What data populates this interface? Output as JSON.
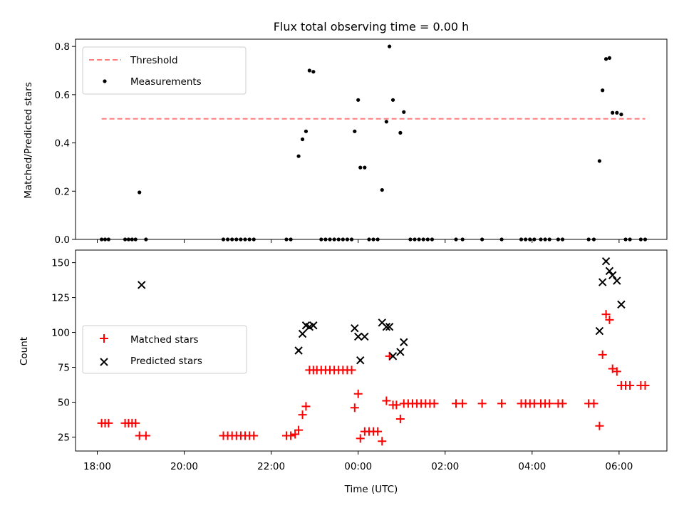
{
  "chart_data": {
    "title": "Flux total observing time = 0.00 h",
    "xlabel": "Time (UTC)",
    "x_tick_labels": [
      "18:00",
      "20:00",
      "22:00",
      "00:00",
      "02:00",
      "04:00",
      "06:00"
    ],
    "x_tick_hours": [
      0,
      2,
      4,
      6,
      8,
      10,
      12
    ],
    "xlim_hours": [
      -0.5,
      13.1
    ],
    "panels": [
      {
        "type": "scatter",
        "ylabel": "Matched/Predicted stars",
        "ylim": [
          0,
          0.83
        ],
        "y_ticks": [
          0.0,
          0.2,
          0.4,
          0.6,
          0.8
        ],
        "y_tick_labels": [
          "0.0",
          "0.2",
          "0.4",
          "0.6",
          "0.8"
        ],
        "legend": [
          {
            "label": "Threshold",
            "style": "dashed-line",
            "color": "#ff7f7f"
          },
          {
            "label": "Measurements",
            "style": "dot",
            "color": "#000000"
          }
        ],
        "legend_position": "upper-left",
        "threshold": {
          "name": "Threshold",
          "y": 0.5,
          "x": [
            0.1,
            12.6
          ],
          "color": "#ff7f7f"
        },
        "series": [
          {
            "name": "Measurements",
            "marker": "dot",
            "color": "#000000",
            "points": [
              [
                0.1,
                0
              ],
              [
                0.18,
                0
              ],
              [
                0.26,
                0
              ],
              [
                0.64,
                0
              ],
              [
                0.72,
                0
              ],
              [
                0.8,
                0
              ],
              [
                0.88,
                0
              ],
              [
                0.97,
                0.195
              ],
              [
                1.12,
                0
              ],
              [
                2.9,
                0
              ],
              [
                3.0,
                0
              ],
              [
                3.1,
                0
              ],
              [
                3.2,
                0
              ],
              [
                3.3,
                0
              ],
              [
                3.4,
                0
              ],
              [
                3.5,
                0
              ],
              [
                3.6,
                0
              ],
              [
                4.35,
                0
              ],
              [
                4.45,
                0
              ],
              [
                4.63,
                0.345
              ],
              [
                4.72,
                0.415
              ],
              [
                4.8,
                0.448
              ],
              [
                4.88,
                0.7
              ],
              [
                4.97,
                0.695
              ],
              [
                5.15,
                0
              ],
              [
                5.25,
                0
              ],
              [
                5.35,
                0
              ],
              [
                5.45,
                0
              ],
              [
                5.55,
                0
              ],
              [
                5.65,
                0
              ],
              [
                5.75,
                0
              ],
              [
                5.85,
                0
              ],
              [
                5.92,
                0.448
              ],
              [
                6.0,
                0.578
              ],
              [
                6.05,
                0.298
              ],
              [
                6.15,
                0.298
              ],
              [
                6.25,
                0
              ],
              [
                6.35,
                0
              ],
              [
                6.45,
                0
              ],
              [
                6.55,
                0.205
              ],
              [
                6.65,
                0.488
              ],
              [
                6.72,
                0.8
              ],
              [
                6.8,
                0.578
              ],
              [
                6.97,
                0.442
              ],
              [
                7.05,
                0.528
              ],
              [
                7.2,
                0
              ],
              [
                7.3,
                0
              ],
              [
                7.4,
                0
              ],
              [
                7.5,
                0
              ],
              [
                7.6,
                0
              ],
              [
                7.7,
                0
              ],
              [
                8.25,
                0
              ],
              [
                8.4,
                0
              ],
              [
                8.85,
                0
              ],
              [
                9.3,
                0
              ],
              [
                9.75,
                0
              ],
              [
                9.85,
                0
              ],
              [
                9.95,
                0
              ],
              [
                10.05,
                0
              ],
              [
                10.2,
                0
              ],
              [
                10.3,
                0
              ],
              [
                10.4,
                0
              ],
              [
                10.6,
                0
              ],
              [
                10.7,
                0
              ],
              [
                11.3,
                0
              ],
              [
                11.42,
                0
              ],
              [
                11.55,
                0.325
              ],
              [
                11.62,
                0.618
              ],
              [
                11.7,
                0.748
              ],
              [
                11.78,
                0.752
              ],
              [
                11.85,
                0.525
              ],
              [
                11.95,
                0.525
              ],
              [
                12.05,
                0.518
              ],
              [
                12.15,
                0
              ],
              [
                12.25,
                0
              ],
              [
                12.5,
                0
              ],
              [
                12.6,
                0
              ]
            ]
          }
        ]
      },
      {
        "type": "scatter",
        "ylabel": "Count",
        "ylim": [
          15,
          159
        ],
        "y_ticks": [
          25,
          50,
          75,
          100,
          125,
          150
        ],
        "y_tick_labels": [
          "25",
          "50",
          "75",
          "100",
          "125",
          "150"
        ],
        "legend": [
          {
            "label": "Matched stars",
            "style": "plus",
            "color": "#ff0000"
          },
          {
            "label": "Predicted stars",
            "style": "cross",
            "color": "#000000"
          }
        ],
        "legend_position": "center-left",
        "series": [
          {
            "name": "Matched stars",
            "marker": "plus",
            "color": "#ff0000",
            "points": [
              [
                0.1,
                35
              ],
              [
                0.18,
                35
              ],
              [
                0.26,
                35
              ],
              [
                0.64,
                35
              ],
              [
                0.72,
                35
              ],
              [
                0.8,
                35
              ],
              [
                0.88,
                35
              ],
              [
                0.97,
                26
              ],
              [
                1.12,
                26
              ],
              [
                2.9,
                26
              ],
              [
                3.0,
                26
              ],
              [
                3.1,
                26
              ],
              [
                3.2,
                26
              ],
              [
                3.3,
                26
              ],
              [
                3.4,
                26
              ],
              [
                3.5,
                26
              ],
              [
                3.6,
                26
              ],
              [
                4.35,
                26
              ],
              [
                4.45,
                26
              ],
              [
                4.55,
                27
              ],
              [
                4.63,
                30
              ],
              [
                4.72,
                41
              ],
              [
                4.8,
                47
              ],
              [
                4.88,
                73
              ],
              [
                4.97,
                73
              ],
              [
                5.05,
                73
              ],
              [
                5.15,
                73
              ],
              [
                5.25,
                73
              ],
              [
                5.35,
                73
              ],
              [
                5.45,
                73
              ],
              [
                5.55,
                73
              ],
              [
                5.65,
                73
              ],
              [
                5.75,
                73
              ],
              [
                5.85,
                73
              ],
              [
                5.92,
                46
              ],
              [
                6.0,
                56
              ],
              [
                6.05,
                24
              ],
              [
                6.15,
                29
              ],
              [
                6.25,
                29
              ],
              [
                6.35,
                29
              ],
              [
                6.45,
                29
              ],
              [
                6.55,
                22
              ],
              [
                6.65,
                51
              ],
              [
                6.72,
                83
              ],
              [
                6.8,
                48
              ],
              [
                6.88,
                48
              ],
              [
                6.97,
                38
              ],
              [
                7.05,
                49
              ],
              [
                7.15,
                49
              ],
              [
                7.25,
                49
              ],
              [
                7.35,
                49
              ],
              [
                7.45,
                49
              ],
              [
                7.55,
                49
              ],
              [
                7.65,
                49
              ],
              [
                7.75,
                49
              ],
              [
                8.25,
                49
              ],
              [
                8.4,
                49
              ],
              [
                8.85,
                49
              ],
              [
                9.3,
                49
              ],
              [
                9.75,
                49
              ],
              [
                9.85,
                49
              ],
              [
                9.95,
                49
              ],
              [
                10.05,
                49
              ],
              [
                10.2,
                49
              ],
              [
                10.3,
                49
              ],
              [
                10.4,
                49
              ],
              [
                10.6,
                49
              ],
              [
                10.7,
                49
              ],
              [
                11.3,
                49
              ],
              [
                11.42,
                49
              ],
              [
                11.55,
                33
              ],
              [
                11.62,
                84
              ],
              [
                11.7,
                113
              ],
              [
                11.78,
                109
              ],
              [
                11.85,
                74
              ],
              [
                11.95,
                72
              ],
              [
                12.05,
                62
              ],
              [
                12.15,
                62
              ],
              [
                12.25,
                62
              ],
              [
                12.5,
                62
              ],
              [
                12.6,
                62
              ]
            ]
          },
          {
            "name": "Predicted stars",
            "marker": "cross",
            "color": "#000000",
            "points": [
              [
                1.02,
                134
              ],
              [
                4.63,
                87
              ],
              [
                4.72,
                99
              ],
              [
                4.8,
                105
              ],
              [
                4.88,
                104
              ],
              [
                4.97,
                105
              ],
              [
                5.92,
                103
              ],
              [
                6.0,
                97
              ],
              [
                6.05,
                80
              ],
              [
                6.15,
                97
              ],
              [
                6.55,
                107
              ],
              [
                6.65,
                104
              ],
              [
                6.72,
                104
              ],
              [
                6.8,
                83
              ],
              [
                6.97,
                86
              ],
              [
                7.05,
                93
              ],
              [
                11.55,
                101
              ],
              [
                11.62,
                136
              ],
              [
                11.7,
                151
              ],
              [
                11.78,
                144
              ],
              [
                11.85,
                141
              ],
              [
                11.95,
                137
              ],
              [
                12.05,
                120
              ]
            ]
          }
        ]
      }
    ]
  }
}
